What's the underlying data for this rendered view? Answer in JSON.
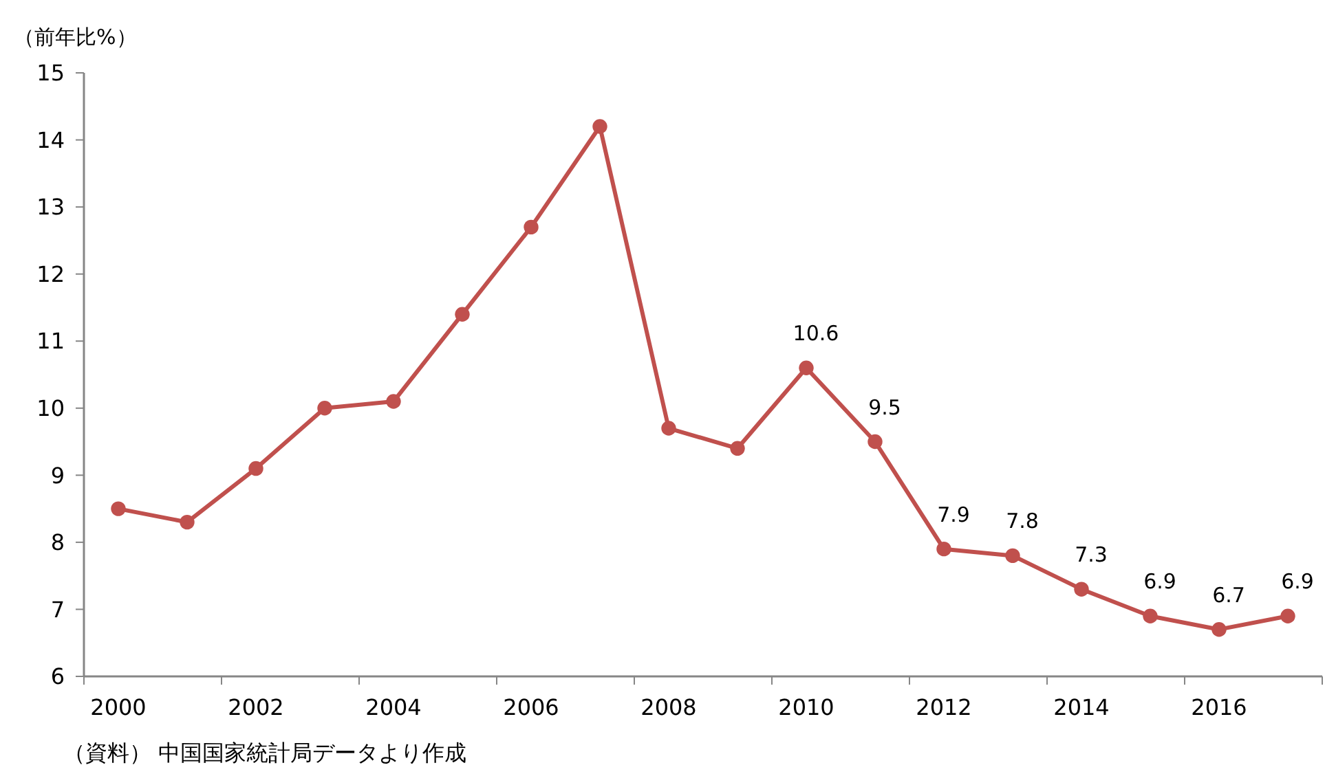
{
  "chart_data": {
    "type": "line",
    "ylabel": "（前年比%）",
    "categories": [
      "2000",
      null,
      "2002",
      null,
      "2004",
      null,
      "2006",
      null,
      "2008",
      null,
      "2010",
      null,
      "2012",
      null,
      "2014",
      null,
      "2016",
      null
    ],
    "series": [
      {
        "color": "#c0504d",
        "values": [
          8.5,
          8.3,
          9.1,
          10.0,
          10.1,
          11.4,
          12.7,
          14.2,
          9.7,
          9.4,
          10.6,
          9.5,
          7.9,
          7.8,
          7.3,
          6.9,
          6.7,
          6.9
        ],
        "value_labels": [
          null,
          null,
          null,
          null,
          null,
          null,
          null,
          null,
          null,
          null,
          "10.6",
          "9.5",
          "7.9",
          "7.8",
          "7.3",
          "6.9",
          "6.7",
          "6.9"
        ]
      }
    ],
    "ylim": [
      6,
      15
    ],
    "yticks": [
      6,
      7,
      8,
      9,
      10,
      11,
      12,
      13,
      14,
      15
    ],
    "marker": "circle",
    "line_style": "solid",
    "annotations": [
      "（資料） 中国国家統計局データより作成"
    ]
  }
}
